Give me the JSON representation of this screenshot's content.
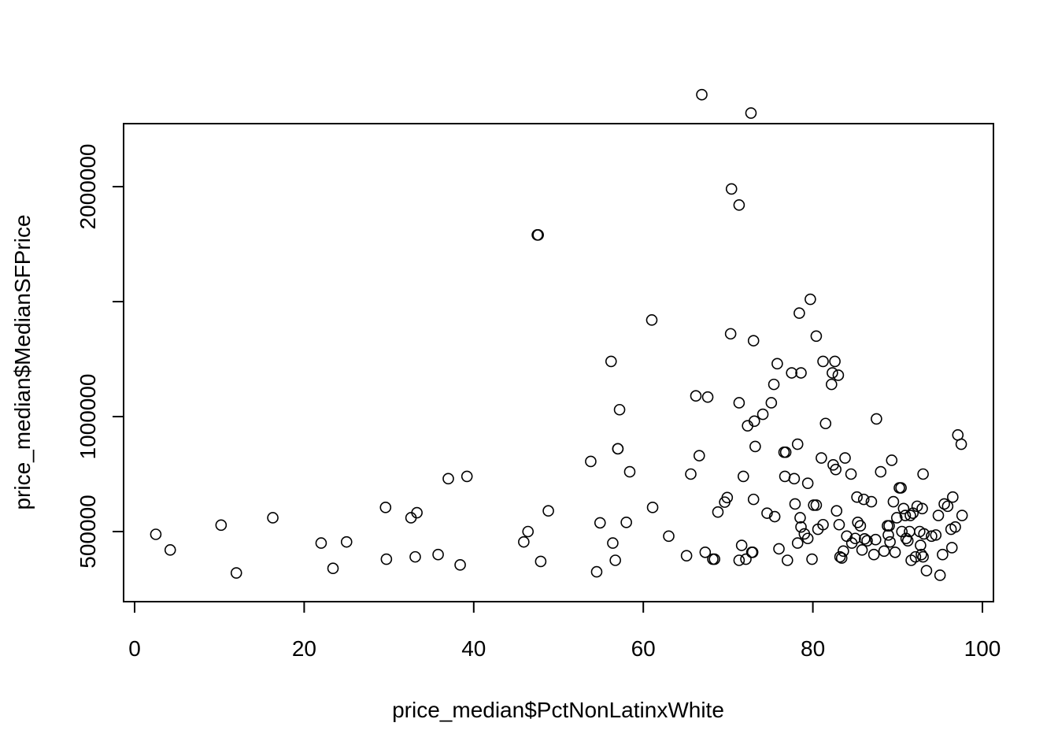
{
  "chart_data": {
    "type": "scatter",
    "title": "",
    "xlabel": "price_median$PctNonLatinxWhite",
    "ylabel": "price_median$MedianSFPrice",
    "xlim": [
      0,
      100
    ],
    "ylim": [
      200000,
      2300000
    ],
    "xticks": [
      0,
      20,
      40,
      60,
      80,
      100
    ],
    "yticks": [
      500000,
      1000000,
      1500000,
      2000000
    ],
    "xtick_labels": [
      "0",
      "20",
      "40",
      "60",
      "80",
      "100"
    ],
    "ytick_labels": [
      "500000",
      "1000000",
      "",
      "2000000"
    ],
    "grid": false,
    "marker": "open-circle",
    "points": [
      [
        2.5,
        488000
      ],
      [
        4.2,
        420000
      ],
      [
        10.2,
        528000
      ],
      [
        12.0,
        320000
      ],
      [
        16.3,
        560000
      ],
      [
        22.0,
        450000
      ],
      [
        23.4,
        340000
      ],
      [
        25.0,
        455000
      ],
      [
        29.6,
        605000
      ],
      [
        29.7,
        380000
      ],
      [
        32.6,
        560000
      ],
      [
        33.1,
        390000
      ],
      [
        33.3,
        582000
      ],
      [
        35.8,
        400000
      ],
      [
        37.0,
        730000
      ],
      [
        38.4,
        355000
      ],
      [
        39.2,
        740000
      ],
      [
        45.9,
        455000
      ],
      [
        46.4,
        500000
      ],
      [
        47.5,
        1790000
      ],
      [
        47.9,
        370000
      ],
      [
        48.8,
        590000
      ],
      [
        53.8,
        805000
      ],
      [
        54.5,
        325000
      ],
      [
        54.9,
        538000
      ],
      [
        56.2,
        1240000
      ],
      [
        56.4,
        450000
      ],
      [
        56.7,
        375000
      ],
      [
        57.0,
        860000
      ],
      [
        57.2,
        1030000
      ],
      [
        58.0,
        540000
      ],
      [
        58.4,
        760000
      ],
      [
        61.0,
        1420000
      ],
      [
        61.1,
        605000
      ],
      [
        63.0,
        480000
      ],
      [
        65.1,
        395000
      ],
      [
        65.6,
        750000
      ],
      [
        66.2,
        1090000
      ],
      [
        66.6,
        830000
      ],
      [
        66.9,
        2400000
      ],
      [
        67.3,
        410000
      ],
      [
        67.6,
        1085000
      ],
      [
        68.2,
        380000
      ],
      [
        68.4,
        380000
      ],
      [
        68.8,
        585000
      ],
      [
        69.6,
        628000
      ],
      [
        69.9,
        648000
      ],
      [
        70.3,
        1360000
      ],
      [
        70.4,
        1990000
      ],
      [
        71.3,
        1920000
      ],
      [
        71.3,
        1060000
      ],
      [
        71.3,
        375000
      ],
      [
        71.6,
        440000
      ],
      [
        71.8,
        740000
      ],
      [
        72.1,
        380000
      ],
      [
        72.3,
        960000
      ],
      [
        72.7,
        2320000
      ],
      [
        72.8,
        410000
      ],
      [
        72.9,
        410000
      ],
      [
        73.0,
        1330000
      ],
      [
        73.0,
        640000
      ],
      [
        73.1,
        980000
      ],
      [
        73.2,
        870000
      ],
      [
        74.1,
        1010000
      ],
      [
        74.6,
        580000
      ],
      [
        75.1,
        1060000
      ],
      [
        75.4,
        1140000
      ],
      [
        75.5,
        565000
      ],
      [
        75.8,
        1230000
      ],
      [
        76.0,
        425000
      ],
      [
        76.6,
        845000
      ],
      [
        76.7,
        740000
      ],
      [
        76.8,
        845000
      ],
      [
        77.0,
        375000
      ],
      [
        77.5,
        1190000
      ],
      [
        77.8,
        730000
      ],
      [
        77.9,
        620000
      ],
      [
        78.2,
        880000
      ],
      [
        78.2,
        450000
      ],
      [
        78.4,
        1450000
      ],
      [
        78.5,
        560000
      ],
      [
        78.6,
        1190000
      ],
      [
        78.6,
        520000
      ],
      [
        79.0,
        490000
      ],
      [
        79.4,
        710000
      ],
      [
        79.4,
        470000
      ],
      [
        79.7,
        1510000
      ],
      [
        79.9,
        380000
      ],
      [
        80.1,
        615000
      ],
      [
        80.4,
        1350000
      ],
      [
        80.4,
        615000
      ],
      [
        80.6,
        510000
      ],
      [
        81.0,
        820000
      ],
      [
        81.2,
        1240000
      ],
      [
        81.2,
        530000
      ],
      [
        81.5,
        970000
      ],
      [
        82.2,
        1140000
      ],
      [
        82.3,
        1190000
      ],
      [
        82.4,
        790000
      ],
      [
        82.6,
        1240000
      ],
      [
        82.7,
        770000
      ],
      [
        82.8,
        590000
      ],
      [
        83.0,
        1180000
      ],
      [
        83.1,
        530000
      ],
      [
        83.2,
        390000
      ],
      [
        83.4,
        385000
      ],
      [
        83.6,
        415000
      ],
      [
        83.8,
        820000
      ],
      [
        84.0,
        480000
      ],
      [
        84.5,
        750000
      ],
      [
        84.6,
        450000
      ],
      [
        85.0,
        470000
      ],
      [
        85.2,
        650000
      ],
      [
        85.3,
        540000
      ],
      [
        85.6,
        525000
      ],
      [
        85.8,
        420000
      ],
      [
        86.0,
        640000
      ],
      [
        86.1,
        468000
      ],
      [
        86.4,
        460000
      ],
      [
        86.9,
        630000
      ],
      [
        87.2,
        400000
      ],
      [
        87.4,
        465000
      ],
      [
        87.5,
        990000
      ],
      [
        88.0,
        760000
      ],
      [
        88.4,
        415000
      ],
      [
        88.8,
        525000
      ],
      [
        88.9,
        485000
      ],
      [
        89.0,
        525000
      ],
      [
        89.1,
        455000
      ],
      [
        89.3,
        810000
      ],
      [
        89.5,
        630000
      ],
      [
        89.7,
        410000
      ],
      [
        89.9,
        560000
      ],
      [
        90.2,
        690000
      ],
      [
        90.4,
        690000
      ],
      [
        90.5,
        500000
      ],
      [
        90.7,
        600000
      ],
      [
        90.9,
        570000
      ],
      [
        91.0,
        470000
      ],
      [
        91.2,
        460000
      ],
      [
        91.4,
        500000
      ],
      [
        91.5,
        570000
      ],
      [
        91.6,
        375000
      ],
      [
        91.8,
        580000
      ],
      [
        92.1,
        390000
      ],
      [
        92.3,
        610000
      ],
      [
        92.6,
        500000
      ],
      [
        92.7,
        440000
      ],
      [
        92.8,
        400000
      ],
      [
        92.9,
        600000
      ],
      [
        93.0,
        750000
      ],
      [
        93.1,
        490000
      ],
      [
        93.4,
        330000
      ],
      [
        94.0,
        480000
      ],
      [
        94.5,
        485000
      ],
      [
        94.8,
        570000
      ],
      [
        95.0,
        310000
      ],
      [
        95.3,
        400000
      ],
      [
        95.5,
        620000
      ],
      [
        95.9,
        610000
      ],
      [
        96.3,
        510000
      ],
      [
        96.4,
        430000
      ],
      [
        96.5,
        650000
      ],
      [
        96.8,
        520000
      ],
      [
        97.1,
        920000
      ],
      [
        97.5,
        880000
      ],
      [
        97.6,
        570000
      ],
      [
        47.6,
        1790000
      ],
      [
        57.0,
        860000
      ],
      [
        93.0,
        390000
      ]
    ]
  }
}
